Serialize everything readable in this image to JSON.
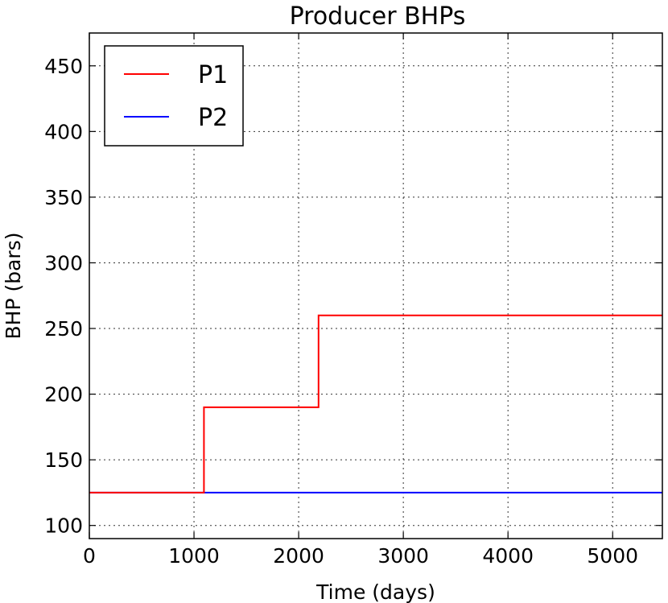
{
  "chart_data": {
    "type": "line",
    "title": "Producer BHPs",
    "xlabel": "Time (days)",
    "ylabel": "BHP (bars)",
    "xlim": [
      0,
      5475
    ],
    "ylim": [
      90,
      475
    ],
    "xticks": [
      0,
      1000,
      2000,
      3000,
      4000,
      5000
    ],
    "yticks": [
      100,
      150,
      200,
      250,
      300,
      350,
      400,
      450
    ],
    "grid": true,
    "legend_position": "top-left",
    "series": [
      {
        "name": "P1",
        "color": "#ff0000",
        "x": [
          0,
          1095,
          1095,
          2190,
          2190,
          5475
        ],
        "y": [
          125,
          125,
          190,
          190,
          260,
          260
        ]
      },
      {
        "name": "P2",
        "color": "#0000ff",
        "x": [
          0,
          5475
        ],
        "y": [
          125,
          125
        ]
      }
    ]
  }
}
